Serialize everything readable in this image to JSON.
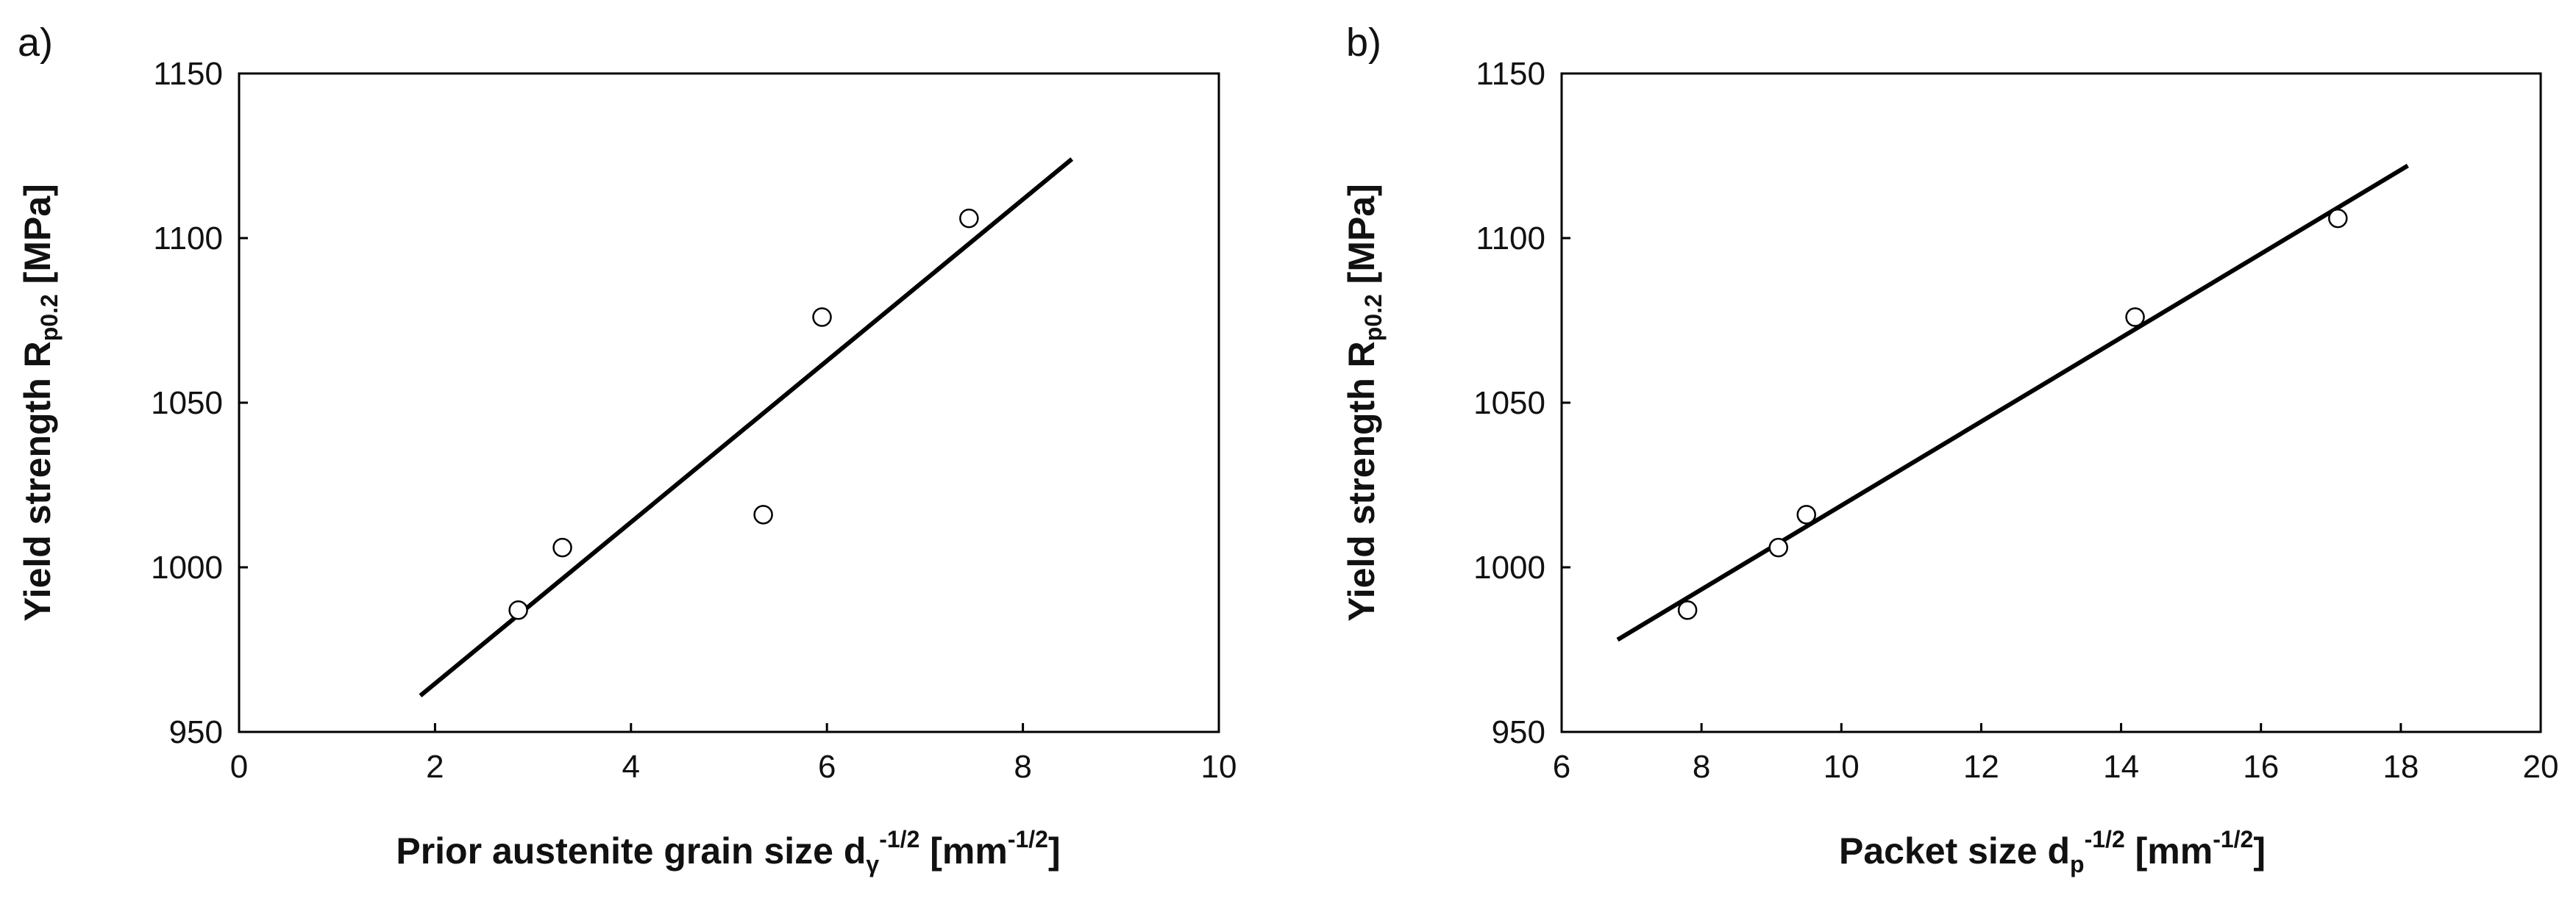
{
  "chart_data": [
    {
      "panel_label": "a)",
      "type": "scatter",
      "xlabel": {
        "text": "Prior austenite grain size d",
        "sub": "γ",
        "sup": "-1/2",
        "unit_open": " [mm",
        "unit_sup": "-1/2",
        "unit_close": "]"
      },
      "ylabel": {
        "text": "Yield strength R",
        "sub": "p0.2",
        "unit": " [MPa]"
      },
      "xlim": [
        0,
        10
      ],
      "ylim": [
        950,
        1150
      ],
      "xticks": [
        0,
        2,
        4,
        6,
        8,
        10
      ],
      "yticks": [
        950,
        1000,
        1050,
        1100,
        1150
      ],
      "points": [
        {
          "x": 2.85,
          "y": 987
        },
        {
          "x": 3.3,
          "y": 1006
        },
        {
          "x": 5.35,
          "y": 1016
        },
        {
          "x": 5.95,
          "y": 1076
        },
        {
          "x": 7.45,
          "y": 1106
        }
      ],
      "fit_line": {
        "x": [
          1.85,
          8.5
        ],
        "y": [
          961,
          1124
        ]
      }
    },
    {
      "panel_label": "b)",
      "type": "scatter",
      "xlabel": {
        "text": "Packet size d",
        "sub": "p",
        "sup": "-1/2",
        "unit_open": " [mm",
        "unit_sup": "-1/2",
        "unit_close": "]"
      },
      "ylabel": {
        "text": "Yield strength R",
        "sub": "p0.2",
        "unit": " [MPa]"
      },
      "xlim": [
        6,
        20
      ],
      "ylim": [
        950,
        1150
      ],
      "xticks": [
        6,
        8,
        10,
        12,
        14,
        16,
        18,
        20
      ],
      "yticks": [
        950,
        1000,
        1050,
        1100,
        1150
      ],
      "points": [
        {
          "x": 7.8,
          "y": 987
        },
        {
          "x": 9.1,
          "y": 1006
        },
        {
          "x": 9.5,
          "y": 1016
        },
        {
          "x": 14.2,
          "y": 1076
        },
        {
          "x": 17.1,
          "y": 1106
        }
      ],
      "fit_line": {
        "x": [
          6.8,
          18.1
        ],
        "y": [
          978,
          1122
        ]
      }
    }
  ]
}
